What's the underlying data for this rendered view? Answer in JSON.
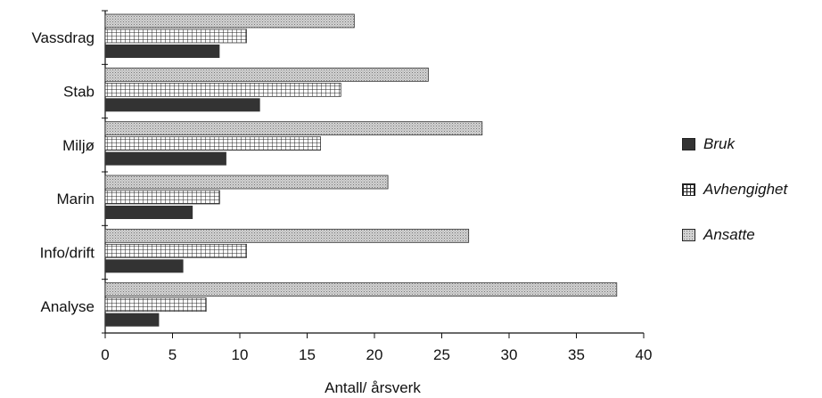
{
  "chart_data": {
    "type": "bar",
    "orientation": "horizontal",
    "categories": [
      "Vassdrag",
      "Stab",
      "Miljø",
      "Marin",
      "Info/drift",
      "Analyse"
    ],
    "series": [
      {
        "name": "Bruk",
        "values": [
          8.5,
          11.5,
          9.0,
          6.5,
          5.8,
          4.0
        ],
        "color": "#333333",
        "pattern": "solid"
      },
      {
        "name": "Avhengighet",
        "values": [
          10.5,
          17.5,
          16.0,
          8.5,
          10.5,
          7.5
        ],
        "color": "#ffffff",
        "pattern": "grid"
      },
      {
        "name": "Ansatte",
        "values": [
          18.5,
          24.0,
          28.0,
          21.0,
          27.0,
          38.0
        ],
        "color": "#c8c8c8",
        "pattern": "stipple"
      }
    ],
    "xlabel": "Antall/ årsverk",
    "ylabel": "",
    "xlim": [
      0,
      40
    ],
    "xticks": [
      0,
      5,
      10,
      15,
      20,
      25,
      30,
      35,
      40
    ],
    "legend_position": "right",
    "grid": false
  }
}
